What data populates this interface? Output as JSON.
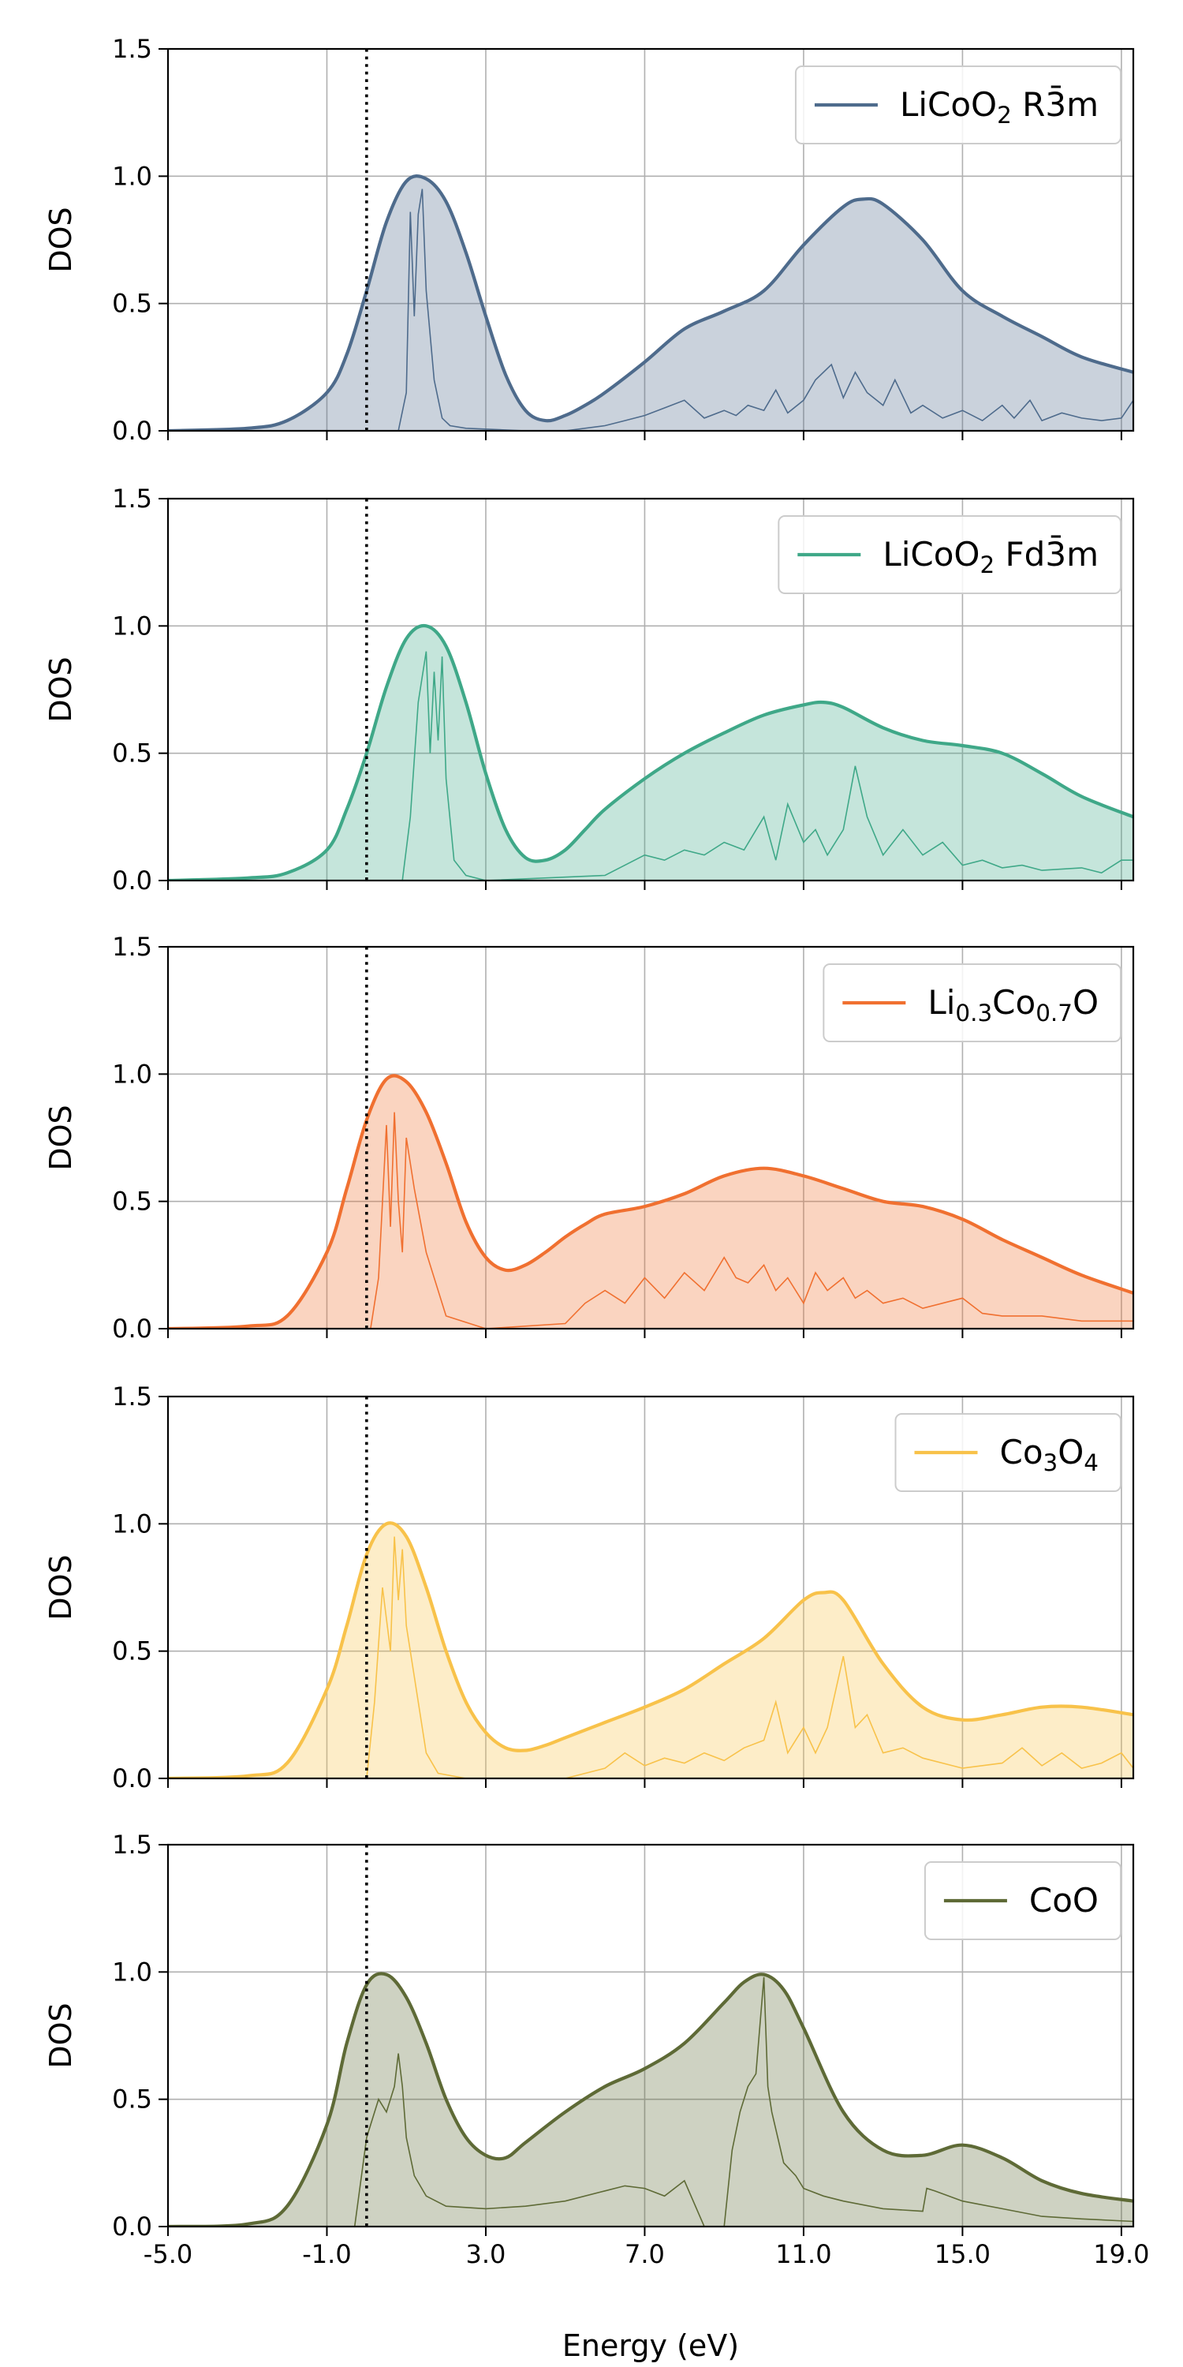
{
  "figure": {
    "xlabel": "Energy (eV)",
    "ylabel": "DOS",
    "xlim": [
      -5.0,
      19.3
    ],
    "ylim": [
      0.0,
      1.5
    ],
    "xticks": [
      -5.0,
      -1.0,
      3.0,
      7.0,
      11.0,
      15.0,
      19.0
    ],
    "xtick_labels": [
      "-5.0",
      "-1.0",
      "3.0",
      "7.0",
      "11.0",
      "15.0",
      "19.0"
    ],
    "yticks": [
      0.0,
      0.5,
      1.0,
      1.5
    ],
    "ytick_labels": [
      "0.0",
      "0.5",
      "1.0",
      "1.5"
    ],
    "fermi_level": 0.0,
    "grid": true,
    "legend_position": "top-right"
  },
  "chart_data": [
    {
      "type": "area",
      "series": [
        {
          "name": "LiCoO₂ R3̄m",
          "color": "#4e6b8c",
          "legend_parts": [
            {
              "t": "LiCoO",
              "s": "n"
            },
            {
              "t": "2",
              "s": "sub"
            },
            {
              "t": " R",
              "s": "n"
            },
            {
              "t": "3̄",
              "s": "n"
            },
            {
              "t": "m",
              "s": "n"
            }
          ],
          "smoothed": {
            "x": [
              -5,
              -3,
              -2,
              -1,
              -0.5,
              0,
              0.5,
              1,
              1.5,
              2,
              2.5,
              3,
              3.5,
              4,
              4.5,
              5,
              5.5,
              6,
              7,
              8,
              9,
              10,
              11,
              12,
              12.5,
              13,
              14,
              15,
              16,
              17,
              18,
              19.3
            ],
            "y": [
              0,
              0.01,
              0.04,
              0.15,
              0.3,
              0.55,
              0.82,
              0.98,
              0.99,
              0.9,
              0.7,
              0.45,
              0.22,
              0.08,
              0.04,
              0.06,
              0.1,
              0.15,
              0.27,
              0.4,
              0.47,
              0.55,
              0.73,
              0.88,
              0.91,
              0.89,
              0.75,
              0.55,
              0.45,
              0.37,
              0.29,
              0.23
            ]
          },
          "raw": {
            "x": [
              -5,
              0.8,
              1.0,
              1.1,
              1.2,
              1.3,
              1.4,
              1.5,
              1.7,
              1.9,
              2.1,
              2.5,
              4,
              5,
              6,
              6.5,
              7,
              7.5,
              8,
              8.5,
              9,
              9.3,
              9.6,
              10,
              10.3,
              10.6,
              11,
              11.3,
              11.7,
              12,
              12.3,
              12.6,
              13,
              13.3,
              13.7,
              14,
              14.5,
              15,
              15.5,
              16,
              16.3,
              16.7,
              17,
              17.5,
              18,
              18.5,
              19,
              19.3
            ],
            "y": [
              0,
              0,
              0.15,
              0.86,
              0.45,
              0.85,
              0.95,
              0.55,
              0.2,
              0.05,
              0.02,
              0.01,
              0,
              0,
              0.02,
              0.04,
              0.06,
              0.09,
              0.12,
              0.05,
              0.08,
              0.06,
              0.1,
              0.08,
              0.16,
              0.07,
              0.12,
              0.2,
              0.26,
              0.13,
              0.23,
              0.15,
              0.1,
              0.2,
              0.07,
              0.1,
              0.05,
              0.08,
              0.04,
              0.1,
              0.05,
              0.12,
              0.04,
              0.07,
              0.05,
              0.04,
              0.05,
              0.12
            ]
          }
        }
      ]
    },
    {
      "type": "area",
      "series": [
        {
          "name": "LiCoO₂ Fd3̄m",
          "color": "#3fa888",
          "legend_parts": [
            {
              "t": "LiCoO",
              "s": "n"
            },
            {
              "t": "2",
              "s": "sub"
            },
            {
              "t": " Fd",
              "s": "n"
            },
            {
              "t": "3̄",
              "s": "n"
            },
            {
              "t": "m",
              "s": "n"
            }
          ],
          "smoothed": {
            "x": [
              -5,
              -3,
              -2,
              -1,
              -0.5,
              0,
              0.5,
              1,
              1.5,
              2,
              2.5,
              3,
              3.5,
              4,
              4.5,
              5,
              5.5,
              6,
              7,
              8,
              9,
              10,
              11,
              11.5,
              12,
              13,
              14,
              15,
              16,
              17,
              18,
              19.3
            ],
            "y": [
              0,
              0.01,
              0.03,
              0.12,
              0.28,
              0.5,
              0.76,
              0.95,
              1.0,
              0.92,
              0.7,
              0.42,
              0.2,
              0.09,
              0.08,
              0.12,
              0.2,
              0.28,
              0.4,
              0.5,
              0.58,
              0.65,
              0.69,
              0.7,
              0.68,
              0.6,
              0.55,
              0.53,
              0.5,
              0.42,
              0.33,
              0.25
            ]
          },
          "raw": {
            "x": [
              -5,
              0.9,
              1.1,
              1.3,
              1.5,
              1.6,
              1.7,
              1.8,
              1.9,
              2.0,
              2.2,
              2.5,
              3,
              6,
              6.5,
              7,
              7.5,
              8,
              8.5,
              9,
              9.5,
              10,
              10.3,
              10.6,
              11,
              11.3,
              11.6,
              12,
              12.3,
              12.6,
              13,
              13.5,
              14,
              14.5,
              15,
              15.5,
              16,
              16.5,
              17,
              18,
              18.5,
              19,
              19.3
            ],
            "y": [
              0,
              0,
              0.25,
              0.7,
              0.9,
              0.5,
              0.82,
              0.55,
              0.88,
              0.4,
              0.08,
              0.02,
              0,
              0.02,
              0.06,
              0.1,
              0.08,
              0.12,
              0.1,
              0.15,
              0.12,
              0.25,
              0.08,
              0.3,
              0.15,
              0.2,
              0.1,
              0.2,
              0.45,
              0.25,
              0.1,
              0.2,
              0.1,
              0.15,
              0.06,
              0.08,
              0.05,
              0.06,
              0.04,
              0.05,
              0.03,
              0.08,
              0.08
            ]
          }
        }
      ]
    },
    {
      "type": "area",
      "series": [
        {
          "name": "Li₀.₃Co₀.₇O",
          "color": "#f07030",
          "legend_parts": [
            {
              "t": "Li",
              "s": "n"
            },
            {
              "t": "0.3",
              "s": "sub"
            },
            {
              "t": "Co",
              "s": "n"
            },
            {
              "t": "0.7",
              "s": "sub"
            },
            {
              "t": "O",
              "s": "n"
            }
          ],
          "smoothed": {
            "x": [
              -5,
              -3,
              -2,
              -1,
              -0.5,
              0,
              0.5,
              1,
              1.5,
              2,
              2.5,
              3,
              3.5,
              4,
              4.5,
              5,
              5.5,
              6,
              7,
              8,
              9,
              10,
              11,
              12,
              13,
              14,
              15,
              16,
              17,
              18,
              19.3
            ],
            "y": [
              0,
              0.01,
              0.05,
              0.3,
              0.55,
              0.82,
              0.98,
              0.97,
              0.85,
              0.65,
              0.42,
              0.28,
              0.23,
              0.25,
              0.3,
              0.36,
              0.41,
              0.45,
              0.48,
              0.53,
              0.6,
              0.63,
              0.6,
              0.55,
              0.5,
              0.48,
              0.43,
              0.35,
              0.28,
              0.21,
              0.14
            ]
          },
          "raw": {
            "x": [
              -5,
              0.1,
              0.3,
              0.5,
              0.6,
              0.7,
              0.8,
              0.9,
              1.0,
              1.2,
              1.5,
              2,
              3,
              5,
              5.5,
              6,
              6.5,
              7,
              7.5,
              8,
              8.5,
              9,
              9.3,
              9.6,
              10,
              10.3,
              10.6,
              11,
              11.3,
              11.6,
              12,
              12.3,
              12.6,
              13,
              13.5,
              14,
              14.5,
              15,
              15.5,
              16,
              17,
              18,
              19.3
            ],
            "y": [
              0,
              0,
              0.2,
              0.8,
              0.4,
              0.85,
              0.5,
              0.3,
              0.75,
              0.55,
              0.3,
              0.05,
              0,
              0.02,
              0.1,
              0.15,
              0.1,
              0.2,
              0.12,
              0.22,
              0.15,
              0.28,
              0.2,
              0.18,
              0.25,
              0.15,
              0.2,
              0.1,
              0.22,
              0.15,
              0.2,
              0.12,
              0.15,
              0.1,
              0.12,
              0.08,
              0.1,
              0.12,
              0.06,
              0.05,
              0.05,
              0.03,
              0.03
            ]
          }
        }
      ]
    },
    {
      "type": "area",
      "series": [
        {
          "name": "Co₃O₄",
          "color": "#f8c24a",
          "legend_parts": [
            {
              "t": "Co",
              "s": "n"
            },
            {
              "t": "3",
              "s": "sub"
            },
            {
              "t": "O",
              "s": "n"
            },
            {
              "t": "4",
              "s": "sub"
            }
          ],
          "smoothed": {
            "x": [
              -5,
              -3,
              -2,
              -1,
              -0.5,
              0,
              0.5,
              1,
              1.5,
              2,
              2.5,
              3,
              3.5,
              4,
              4.5,
              5,
              6,
              7,
              8,
              9,
              10,
              11,
              11.5,
              12,
              13,
              14,
              15,
              16,
              17,
              18,
              19.3
            ],
            "y": [
              0,
              0.01,
              0.06,
              0.35,
              0.6,
              0.88,
              1.0,
              0.95,
              0.75,
              0.5,
              0.3,
              0.18,
              0.12,
              0.11,
              0.13,
              0.16,
              0.22,
              0.28,
              0.35,
              0.45,
              0.55,
              0.7,
              0.73,
              0.7,
              0.45,
              0.28,
              0.23,
              0.25,
              0.28,
              0.28,
              0.25
            ]
          },
          "raw": {
            "x": [
              -5,
              0.0,
              0.2,
              0.4,
              0.6,
              0.7,
              0.8,
              0.9,
              1.0,
              1.2,
              1.5,
              1.8,
              2.5,
              5,
              6,
              6.5,
              7,
              7.5,
              8,
              8.5,
              9,
              9.5,
              10,
              10.3,
              10.6,
              11,
              11.3,
              11.6,
              12,
              12.3,
              12.6,
              13,
              13.5,
              14,
              15,
              16,
              16.5,
              17,
              17.5,
              18,
              18.5,
              19,
              19.3
            ],
            "y": [
              0,
              0,
              0.3,
              0.75,
              0.5,
              0.95,
              0.7,
              0.9,
              0.6,
              0.4,
              0.1,
              0.02,
              0,
              0,
              0.04,
              0.1,
              0.05,
              0.08,
              0.06,
              0.1,
              0.07,
              0.12,
              0.15,
              0.3,
              0.1,
              0.2,
              0.1,
              0.2,
              0.48,
              0.2,
              0.25,
              0.1,
              0.12,
              0.08,
              0.04,
              0.06,
              0.12,
              0.05,
              0.1,
              0.04,
              0.06,
              0.1,
              0.04
            ]
          }
        }
      ]
    },
    {
      "type": "area",
      "series": [
        {
          "name": "CoO",
          "color": "#5e6a36",
          "legend_parts": [
            {
              "t": "CoO",
              "s": "n"
            }
          ],
          "smoothed": {
            "x": [
              -5,
              -3,
              -2,
              -1,
              -0.5,
              0,
              0.5,
              1,
              1.5,
              2,
              2.5,
              3,
              3.5,
              4,
              5,
              6,
              7,
              8,
              9,
              9.5,
              10,
              10.5,
              11,
              12,
              13,
              14,
              15,
              16,
              17,
              18,
              19.3
            ],
            "y": [
              0,
              0.01,
              0.08,
              0.4,
              0.72,
              0.95,
              0.99,
              0.9,
              0.72,
              0.5,
              0.35,
              0.28,
              0.27,
              0.33,
              0.45,
              0.55,
              0.62,
              0.72,
              0.88,
              0.96,
              0.99,
              0.93,
              0.78,
              0.45,
              0.3,
              0.28,
              0.32,
              0.27,
              0.18,
              0.13,
              0.1
            ]
          },
          "raw": {
            "x": [
              -5,
              -0.3,
              0.0,
              0.3,
              0.5,
              0.7,
              0.8,
              0.9,
              1.0,
              1.2,
              1.5,
              2,
              3,
              4,
              5,
              6,
              6.5,
              7,
              7.5,
              8,
              8.5,
              9,
              9.2,
              9.4,
              9.6,
              9.8,
              10,
              10.1,
              10.2,
              10.5,
              10.8,
              11,
              11.5,
              12,
              13,
              14,
              14.1,
              14.3,
              15,
              16,
              17,
              18,
              19.3
            ],
            "y": [
              0,
              0,
              0.35,
              0.5,
              0.45,
              0.55,
              0.68,
              0.55,
              0.35,
              0.2,
              0.12,
              0.08,
              0.07,
              0.08,
              0.1,
              0.14,
              0.16,
              0.15,
              0.12,
              0.18,
              0,
              0,
              0.3,
              0.45,
              0.55,
              0.6,
              0.98,
              0.55,
              0.45,
              0.25,
              0.2,
              0.15,
              0.12,
              0.1,
              0.07,
              0.06,
              0.15,
              0.14,
              0.1,
              0.07,
              0.04,
              0.03,
              0.02
            ]
          }
        }
      ]
    }
  ]
}
